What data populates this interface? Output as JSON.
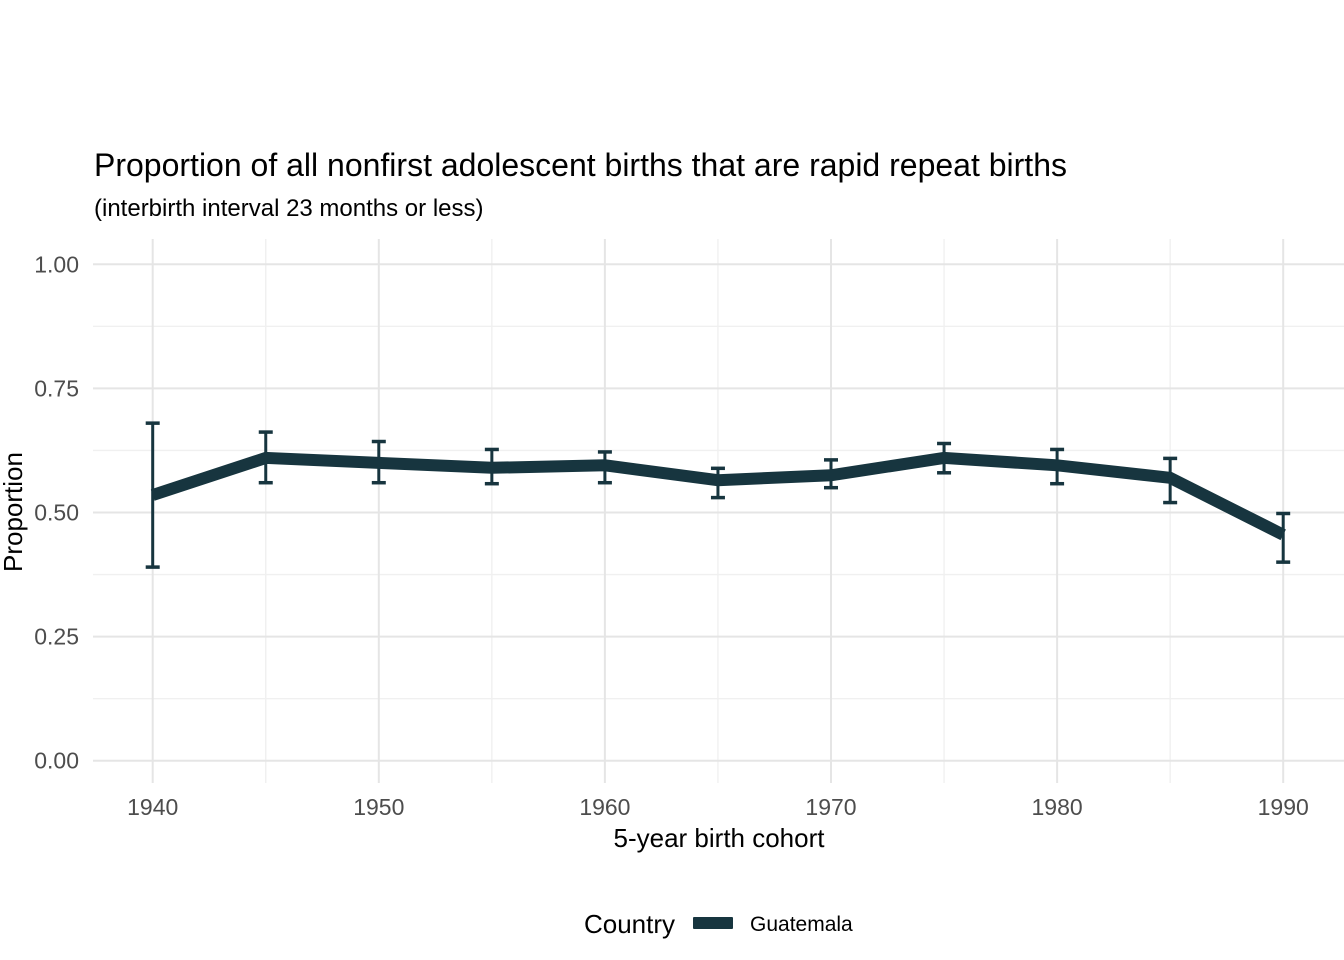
{
  "title": "Proportion of all nonfirst adolescent births that are rapid repeat births",
  "subtitle": "(interbirth interval 23 months or less)",
  "legend": {
    "title": "Country",
    "series_label": "Guatemala"
  },
  "colors": {
    "series": "#17353f",
    "grid_major": "#e5e5e5",
    "grid_minor": "#f0f0f0",
    "tick_label": "#4d4d4d",
    "text": "#000000",
    "background": "#ffffff"
  },
  "chart_data": {
    "type": "line",
    "title": "Proportion of all nonfirst adolescent births that are rapid repeat births",
    "subtitle": "(interbirth interval 23 months or less)",
    "xlabel": "5-year birth cohort",
    "ylabel": "Proportion",
    "x": [
      1940,
      1945,
      1950,
      1955,
      1960,
      1965,
      1970,
      1975,
      1980,
      1985,
      1990
    ],
    "series": [
      {
        "name": "Guatemala",
        "values": [
          0.535,
          0.61,
          0.6,
          0.59,
          0.595,
          0.565,
          0.575,
          0.61,
          0.595,
          0.57,
          0.455
        ],
        "ci_low": [
          0.39,
          0.56,
          0.56,
          0.558,
          0.56,
          0.53,
          0.55,
          0.58,
          0.558,
          0.52,
          0.4
        ],
        "ci_high": [
          0.68,
          0.662,
          0.643,
          0.627,
          0.622,
          0.589,
          0.606,
          0.639,
          0.627,
          0.609,
          0.498
        ]
      }
    ],
    "error_bars": true,
    "x_ticks": [
      1940,
      1950,
      1960,
      1970,
      1980,
      1990
    ],
    "x_minor_ticks": [
      1945,
      1955,
      1965,
      1975,
      1985
    ],
    "y_ticks": [
      0.0,
      0.25,
      0.5,
      0.75,
      1.0
    ],
    "y_tick_labels": [
      "0.00",
      "0.25",
      "0.50",
      "0.75",
      "1.00"
    ],
    "y_minor_ticks": [
      0.125,
      0.375,
      0.625,
      0.875
    ],
    "ylim": [
      0,
      1
    ],
    "xlim": [
      1940,
      1990
    ],
    "grid": true,
    "legend_position": "bottom"
  }
}
